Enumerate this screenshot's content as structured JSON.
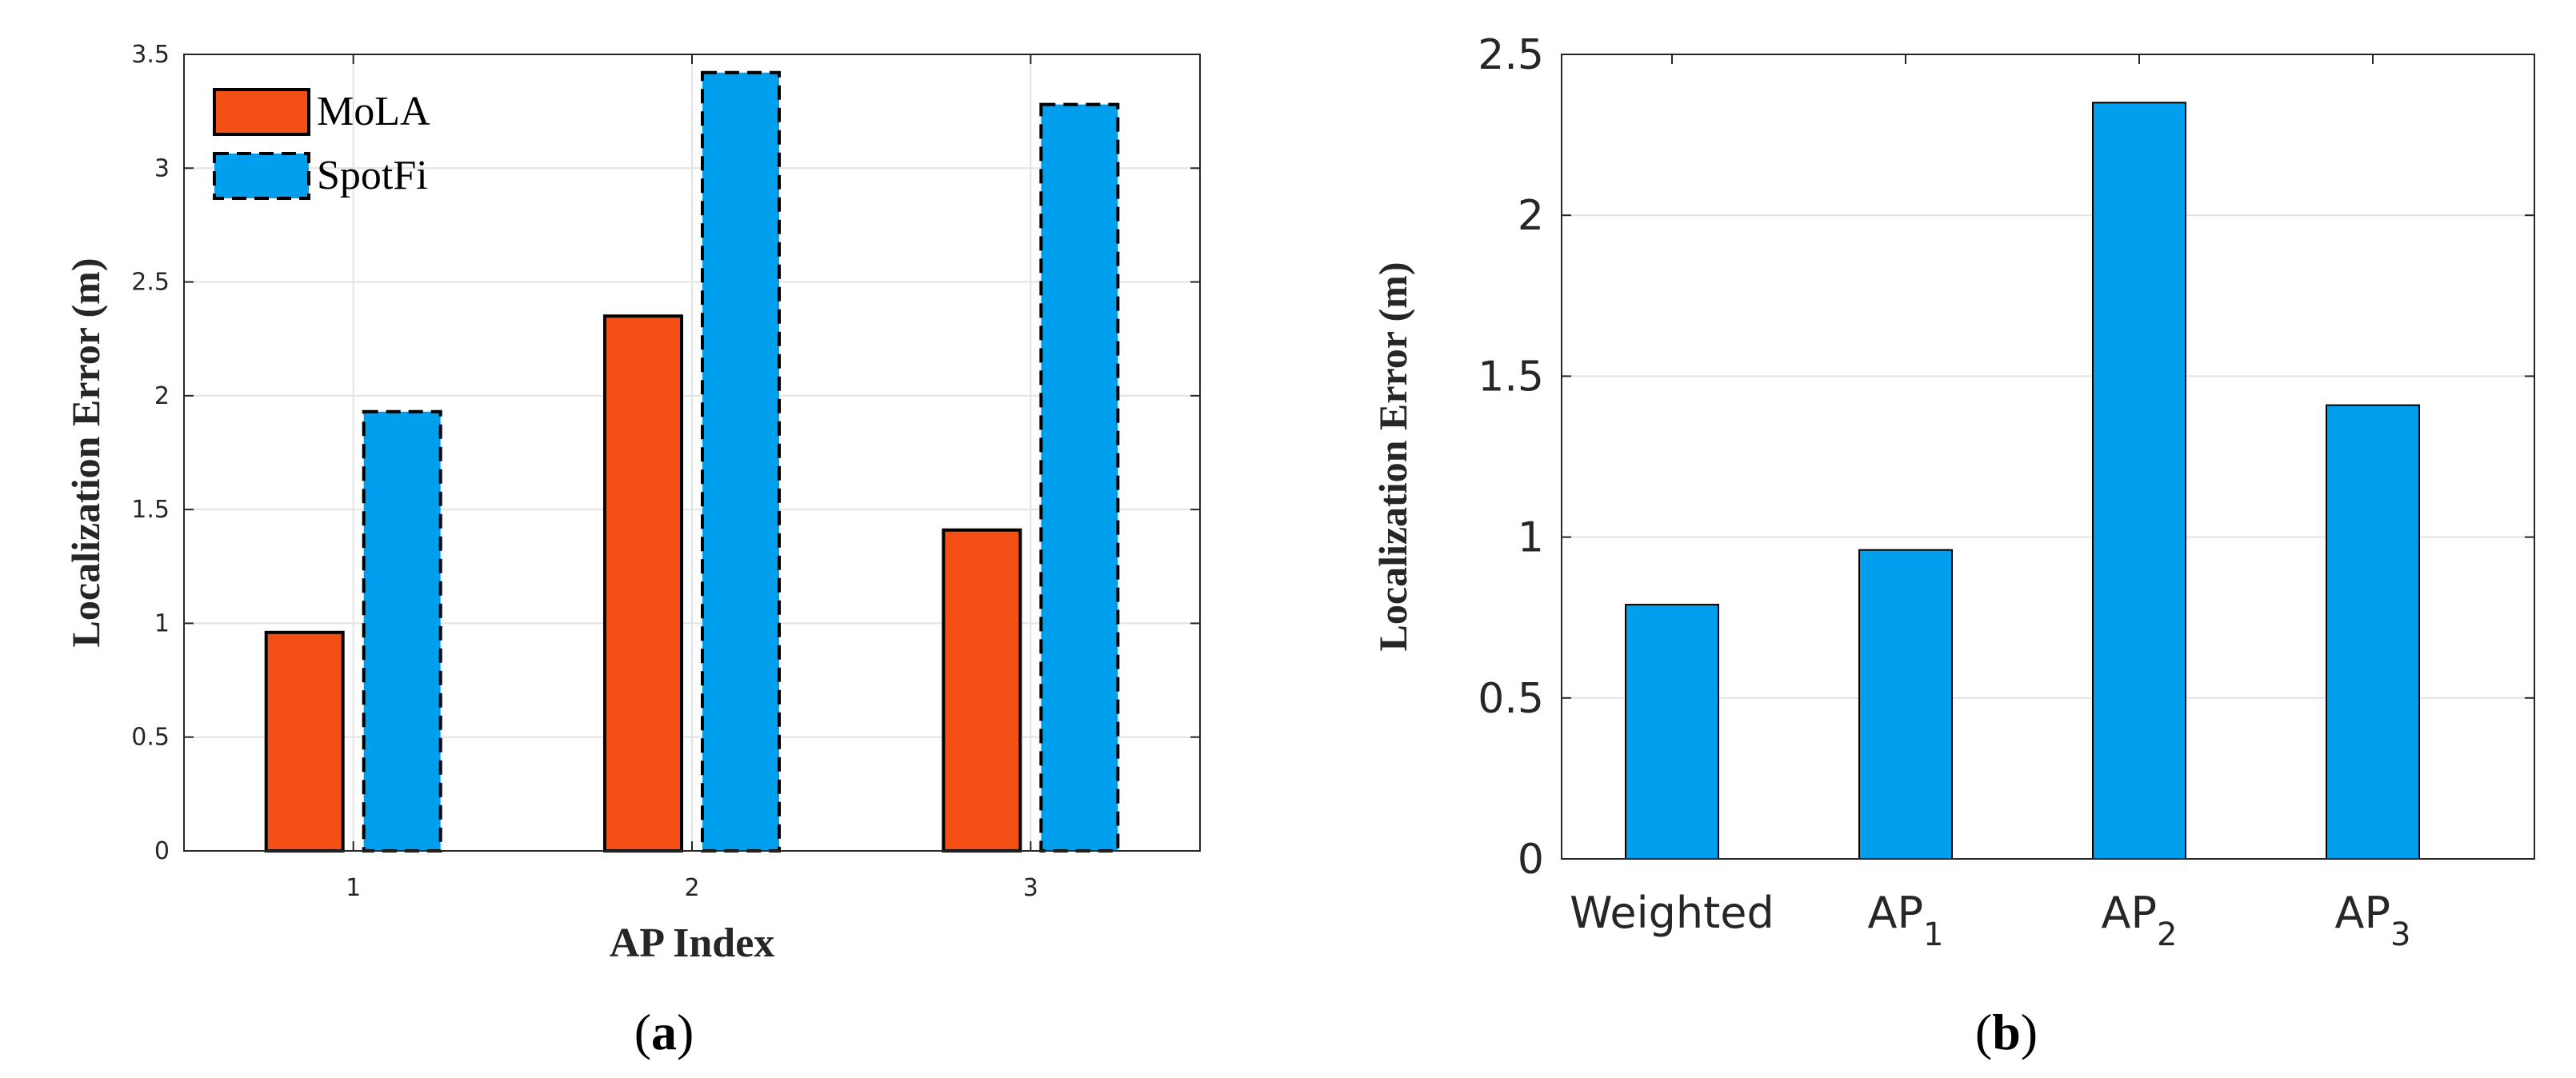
{
  "chart_data": [
    {
      "type": "bar",
      "panel_label": "a",
      "categories": [
        "1",
        "2",
        "3"
      ],
      "series": [
        {
          "name": "MoLA",
          "values": [
            0.96,
            2.35,
            1.41
          ],
          "color": "#F45015",
          "edge_style": "solid"
        },
        {
          "name": "SpotFi",
          "values": [
            1.93,
            3.42,
            3.28
          ],
          "color": "#009FEE",
          "edge_style": "dashed"
        }
      ],
      "xlabel": "AP Index",
      "ylabel": "Localization Error (m)",
      "ylim": [
        0,
        3.5
      ],
      "yticks": [
        "0",
        "0.5",
        "1",
        "1.5",
        "2",
        "2.5",
        "3",
        "3.5"
      ],
      "grid": true,
      "legend_position": "top-left"
    },
    {
      "type": "bar",
      "panel_label": "b",
      "categories": [
        {
          "base": "Weighted",
          "sub": ""
        },
        {
          "base": "AP",
          "sub": "1"
        },
        {
          "base": "AP",
          "sub": "2"
        },
        {
          "base": "AP",
          "sub": "3"
        }
      ],
      "values": [
        0.79,
        0.96,
        2.35,
        1.41
      ],
      "color": "#009FEE",
      "xlabel": "",
      "ylabel": "Localization Error (m)",
      "ylim": [
        0,
        2.5
      ],
      "yticks": [
        "0",
        "0.5",
        "1",
        "1.5",
        "2",
        "2.5"
      ],
      "grid": true
    }
  ]
}
